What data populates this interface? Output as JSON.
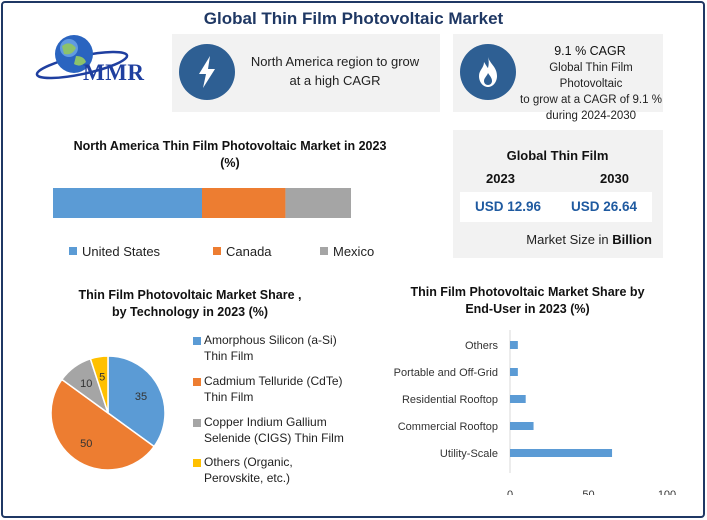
{
  "header": {
    "title": "Global Thin Film Photovoltaic Market",
    "logo_text": "MMR"
  },
  "highlights": {
    "region": {
      "text_line1": "North America region to grow",
      "text_line2": "at a high CAGR",
      "icon": "lightning-icon"
    },
    "cagr": {
      "title": "9.1 % CAGR",
      "line1": "Global Thin Film Photovoltaic",
      "line2": "to grow at a CAGR of 9.1 %",
      "line3": "during 2024-2030",
      "icon": "flame-icon"
    }
  },
  "market_size": {
    "title": "Global Thin Film",
    "year1": "2023",
    "year2": "2030",
    "value1": "USD 12.96",
    "value2": "USD 26.64",
    "unit_prefix": "Market Size in ",
    "unit_bold": "Billion"
  },
  "colors": {
    "blue": "#5b9bd5",
    "orange": "#ed7d31",
    "gray": "#a5a5a5",
    "yellow": "#ffc000",
    "navy": "#1f3864",
    "accent": "#2e5f93"
  },
  "chart_data": [
    {
      "type": "bar",
      "orientation": "horizontal-stacked",
      "title_line1": "North America Thin Film Photovoltaic Market in 2023",
      "title_line2": "(%)",
      "categories": [
        "United States",
        "Canada",
        "Mexico"
      ],
      "values": [
        50,
        28,
        22
      ],
      "legend_position": "bottom"
    },
    {
      "type": "pie",
      "title_line1": "Thin Film Photovoltaic Market Share ,",
      "title_line2": "by Technology in 2023 (%)",
      "legend_position": "right",
      "slices": [
        {
          "label_line1": "Amorphous Silicon (a-Si)",
          "label_line2": "Thin Film",
          "value": 35,
          "value_label": "35"
        },
        {
          "label_line1": "Cadmium Telluride (CdTe)",
          "label_line2": "Thin Film",
          "value": 50,
          "value_label": "50"
        },
        {
          "label_line1": "Copper Indium Gallium",
          "label_line2": "Selenide (CIGS) Thin Film",
          "value": 10,
          "value_label": "10"
        },
        {
          "label_line1": "Others (Organic,",
          "label_line2": "Perovskite, etc.)",
          "value": 5,
          "value_label": "5"
        }
      ]
    },
    {
      "type": "bar",
      "orientation": "horizontal",
      "title_line1": "Thin Film Photovoltaic Market Share by",
      "title_line2": "End-User in 2023 (%)",
      "categories": [
        "Utility-Scale",
        "Commercial Rooftop",
        "Residential Rooftop",
        "Portable and Off-Grid",
        "Others"
      ],
      "values": [
        65,
        15,
        10,
        5,
        5
      ],
      "xlim": [
        0,
        100
      ],
      "ticks": [
        "0",
        "50",
        "100"
      ]
    }
  ]
}
